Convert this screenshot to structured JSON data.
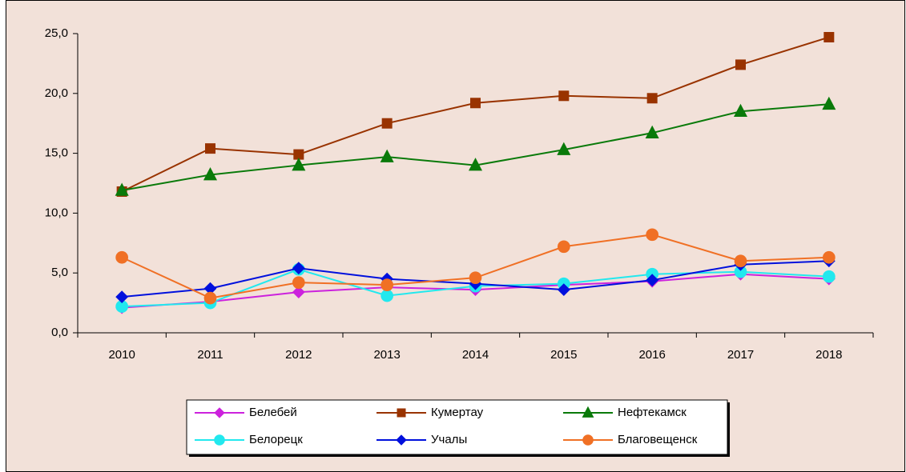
{
  "chart_data": {
    "type": "line",
    "categories": [
      "2010",
      "2011",
      "2012",
      "2013",
      "2014",
      "2015",
      "2016",
      "2017",
      "2018"
    ],
    "series": [
      {
        "name": "Белебей",
        "color": "#cc22dd",
        "marker": "diamond",
        "values": [
          2.1,
          2.6,
          3.4,
          3.8,
          3.6,
          4.0,
          4.3,
          4.9,
          4.5
        ]
      },
      {
        "name": "Кумертау",
        "color": "#993300",
        "marker": "square",
        "values": [
          11.8,
          15.4,
          14.9,
          17.5,
          19.2,
          19.8,
          19.6,
          22.4,
          24.7
        ]
      },
      {
        "name": "Нефтекамск",
        "color": "#0a7a0a",
        "marker": "triangle",
        "values": [
          11.9,
          13.2,
          14.0,
          14.7,
          14.0,
          15.3,
          16.7,
          18.5,
          19.1
        ]
      },
      {
        "name": "Белорецк",
        "color": "#22e8ee",
        "marker": "circle",
        "values": [
          2.2,
          2.5,
          5.3,
          3.1,
          3.9,
          4.1,
          4.9,
          5.1,
          4.7
        ]
      },
      {
        "name": "Учалы",
        "color": "#0010dd",
        "marker": "diamond",
        "values": [
          3.0,
          3.7,
          5.4,
          4.5,
          4.1,
          3.6,
          4.4,
          5.7,
          6.0
        ]
      },
      {
        "name": "Благовещенск",
        "color": "#f07025",
        "marker": "circle",
        "values": [
          6.3,
          2.9,
          4.2,
          4.0,
          4.6,
          7.2,
          8.2,
          6.0,
          6.3
        ]
      }
    ],
    "ylim": [
      0,
      25
    ],
    "yticks": [
      {
        "value": 0,
        "label": "0,0"
      },
      {
        "value": 5,
        "label": "5,0"
      },
      {
        "value": 10,
        "label": "10,0"
      },
      {
        "value": 15,
        "label": "15,0"
      },
      {
        "value": 20,
        "label": "20,0"
      },
      {
        "value": 25,
        "label": "25,0"
      }
    ],
    "legend": "bottom"
  }
}
